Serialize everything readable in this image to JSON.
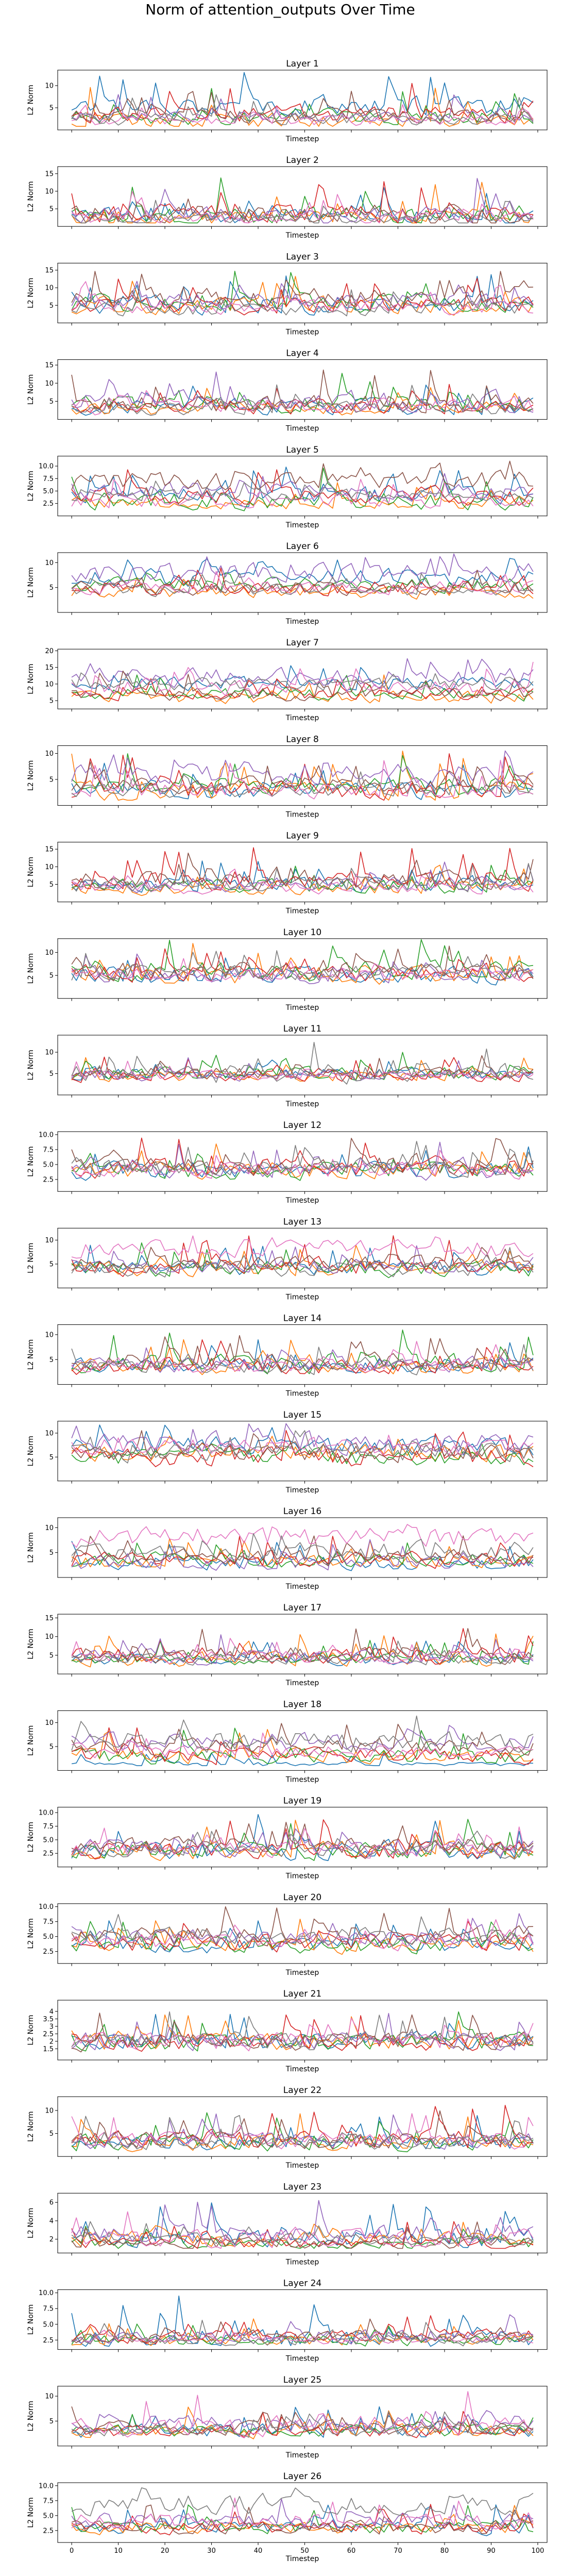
{
  "figure": {
    "title": "Norm of attention_outputs Over Time"
  },
  "palette": [
    "#1f77b4",
    "#ff7f0e",
    "#2ca02c",
    "#d62728",
    "#9467bd",
    "#8c564b",
    "#e377c2",
    "#7f7f7f"
  ],
  "chart_data": {
    "type": "line",
    "x_range": [
      0,
      99
    ],
    "xlim": [
      -3,
      102
    ],
    "x_ticks": [
      0,
      10,
      20,
      30,
      40,
      50,
      60,
      70,
      80,
      90,
      100
    ],
    "xlabel": "Timestep",
    "ylabel": "L2 Norm",
    "series_per_panel": 8,
    "panels": [
      {
        "title": "Layer 1",
        "ylim": [
          0,
          13.5
        ],
        "yticks": [
          5,
          10
        ],
        "lows": [
          1.5,
          0.8,
          1.2,
          1.0,
          1.5,
          0.8,
          1.0,
          0.9
        ],
        "highs": [
          13.0,
          10.0,
          11.0,
          11.0,
          8.0,
          9.0,
          7.0,
          8.0
        ],
        "levels": [
          5.5,
          2.0,
          3.0,
          3.5,
          3.0,
          3.0,
          2.0,
          2.5
        ]
      },
      {
        "title": "Layer 2",
        "ylim": [
          0,
          17
        ],
        "yticks": [
          5,
          10,
          15
        ],
        "lows": [
          1.0,
          1.0,
          1.0,
          1.0,
          1.0,
          1.0,
          1.0,
          1.0
        ],
        "highs": [
          12.0,
          13.0,
          16.0,
          15.0,
          14.0,
          16.0,
          10.0,
          8.0
        ],
        "levels": [
          3.0,
          2.5,
          3.0,
          3.5,
          3.0,
          3.0,
          2.5,
          2.0
        ]
      },
      {
        "title": "Layer 3",
        "ylim": [
          0,
          17
        ],
        "yticks": [
          5,
          10,
          15
        ],
        "lows": [
          2.0,
          2.0,
          2.0,
          2.0,
          2.0,
          2.0,
          2.0,
          2.0
        ],
        "highs": [
          15.0,
          14.0,
          15.0,
          14.0,
          13.0,
          16.0,
          12.0,
          12.0
        ],
        "levels": [
          5.0,
          5.0,
          5.5,
          5.0,
          6.0,
          7.0,
          4.5,
          4.0
        ]
      },
      {
        "title": "Layer 4",
        "ylim": [
          0,
          16.5
        ],
        "yticks": [
          5,
          10,
          15
        ],
        "lows": [
          1.0,
          1.0,
          1.0,
          1.0,
          1.0,
          1.0,
          1.0,
          1.0
        ],
        "highs": [
          12.0,
          10.0,
          13.0,
          11.0,
          16.0,
          14.0,
          12.0,
          10.0
        ],
        "levels": [
          3.5,
          3.0,
          4.0,
          3.5,
          5.0,
          4.5,
          3.5,
          3.0
        ]
      },
      {
        "title": "Layer 5",
        "ylim": [
          0,
          12
        ],
        "yticks": [
          2.5,
          5.0,
          7.5,
          10.0
        ],
        "lows": [
          1.0,
          1.0,
          1.0,
          1.0,
          1.0,
          1.0,
          1.0,
          1.0
        ],
        "highs": [
          10.0,
          7.0,
          10.0,
          10.0,
          10.0,
          11.0,
          8.0,
          7.0
        ],
        "levels": [
          4.0,
          2.5,
          3.0,
          4.0,
          5.0,
          7.0,
          3.0,
          4.0
        ]
      },
      {
        "title": "Layer 6",
        "ylim": [
          0,
          12
        ],
        "yticks": [
          5,
          10
        ],
        "lows": [
          2.0,
          2.0,
          2.0,
          2.0,
          2.0,
          2.0,
          2.0,
          2.0
        ],
        "highs": [
          11.0,
          8.0,
          9.0,
          10.0,
          12.0,
          9.0,
          9.0,
          8.0
        ],
        "levels": [
          7.0,
          4.0,
          5.5,
          5.0,
          8.0,
          5.0,
          5.0,
          4.5
        ]
      },
      {
        "title": "Layer 7",
        "ylim": [
          2.5,
          20.5
        ],
        "yticks": [
          5,
          10,
          15,
          20
        ],
        "lows": [
          5.0,
          3.5,
          4.0,
          4.0,
          5.0,
          4.0,
          5.0,
          5.0
        ],
        "highs": [
          16.0,
          13.0,
          14.0,
          13.0,
          19.0,
          14.0,
          18.0,
          15.0
        ],
        "levels": [
          10.0,
          6.0,
          7.0,
          7.0,
          12.0,
          7.0,
          9.0,
          10.0
        ]
      },
      {
        "title": "Layer 8",
        "ylim": [
          0,
          11.5
        ],
        "yticks": [
          5,
          10
        ],
        "lows": [
          1.0,
          1.0,
          1.0,
          1.0,
          1.0,
          1.0,
          1.0,
          1.0
        ],
        "highs": [
          10.0,
          11.0,
          10.0,
          10.0,
          11.0,
          10.0,
          9.0,
          8.0
        ],
        "levels": [
          3.0,
          2.5,
          3.5,
          3.0,
          6.0,
          4.0,
          3.0,
          3.0
        ]
      },
      {
        "title": "Layer 9",
        "ylim": [
          0,
          17
        ],
        "yticks": [
          5,
          10,
          15
        ],
        "lows": [
          1.5,
          1.5,
          1.5,
          1.5,
          1.5,
          1.5,
          1.5,
          1.5
        ],
        "highs": [
          12.0,
          11.0,
          12.0,
          16.0,
          12.0,
          14.0,
          10.0,
          11.0
        ],
        "levels": [
          5.0,
          4.0,
          4.5,
          6.0,
          5.0,
          6.0,
          4.0,
          4.5
        ]
      },
      {
        "title": "Layer 10",
        "ylim": [
          0,
          13
        ],
        "yticks": [
          5,
          10
        ],
        "lows": [
          2.0,
          2.0,
          2.0,
          2.0,
          2.0,
          2.0,
          2.0,
          2.0
        ],
        "highs": [
          11.0,
          12.0,
          13.0,
          11.0,
          10.0,
          12.0,
          9.0,
          11.0
        ],
        "levels": [
          5.0,
          5.0,
          6.0,
          5.5,
          5.0,
          6.0,
          5.0,
          5.5
        ]
      },
      {
        "title": "Layer 11",
        "ylim": [
          0,
          14
        ],
        "yticks": [
          5,
          10
        ],
        "lows": [
          2.0,
          2.0,
          2.0,
          2.0,
          2.0,
          2.0,
          2.0,
          2.0
        ],
        "highs": [
          9.0,
          9.0,
          10.0,
          9.0,
          9.0,
          10.0,
          8.0,
          14.0
        ],
        "levels": [
          5.0,
          4.5,
          5.0,
          4.5,
          4.5,
          5.0,
          4.5,
          5.0
        ]
      },
      {
        "title": "Layer 12",
        "ylim": [
          0.5,
          10.5
        ],
        "yticks": [
          2.5,
          5.0,
          7.5,
          10.0
        ],
        "lows": [
          1.5,
          1.5,
          1.5,
          1.5,
          1.5,
          1.5,
          1.5,
          1.5
        ],
        "highs": [
          9.0,
          9.0,
          9.0,
          10.0,
          9.0,
          10.0,
          8.0,
          9.0
        ],
        "levels": [
          4.0,
          4.0,
          4.0,
          4.5,
          4.0,
          5.0,
          4.0,
          4.5
        ]
      },
      {
        "title": "Layer 13",
        "ylim": [
          0,
          12.5
        ],
        "yticks": [
          5,
          10
        ],
        "lows": [
          1.5,
          1.5,
          1.5,
          1.5,
          1.5,
          1.5,
          1.5,
          1.5
        ],
        "highs": [
          9.0,
          9.0,
          10.0,
          11.0,
          9.0,
          10.0,
          12.0,
          9.0
        ],
        "levels": [
          4.0,
          4.0,
          4.0,
          4.5,
          4.5,
          5.0,
          8.0,
          4.0
        ]
      },
      {
        "title": "Layer 14",
        "ylim": [
          0,
          12
        ],
        "yticks": [
          5,
          10
        ],
        "lows": [
          1.0,
          1.0,
          1.0,
          1.0,
          1.0,
          1.0,
          1.0,
          1.0
        ],
        "highs": [
          9.0,
          9.0,
          11.0,
          9.0,
          9.0,
          10.0,
          9.0,
          8.0
        ],
        "levels": [
          4.0,
          3.5,
          4.0,
          3.5,
          4.0,
          4.5,
          4.0,
          3.5
        ]
      },
      {
        "title": "Layer 15",
        "ylim": [
          0,
          12.5
        ],
        "yticks": [
          5,
          10
        ],
        "lows": [
          1.0,
          1.0,
          1.0,
          1.0,
          1.0,
          1.0,
          1.0,
          1.0
        ],
        "highs": [
          12.0,
          10.0,
          10.0,
          11.0,
          12.0,
          11.0,
          10.0,
          11.0
        ],
        "levels": [
          7.0,
          6.0,
          5.0,
          5.0,
          8.0,
          6.0,
          7.0,
          6.0
        ]
      },
      {
        "title": "Layer 16",
        "ylim": [
          0,
          12
        ],
        "yticks": [
          5,
          10
        ],
        "lows": [
          1.0,
          1.0,
          1.0,
          1.0,
          1.0,
          1.0,
          1.0,
          1.0
        ],
        "highs": [
          8.0,
          8.0,
          9.0,
          9.0,
          8.0,
          9.0,
          11.0,
          9.0
        ],
        "levels": [
          3.0,
          3.0,
          3.5,
          3.5,
          3.0,
          4.0,
          8.0,
          5.0
        ]
      },
      {
        "title": "Layer 17",
        "ylim": [
          0,
          16
        ],
        "yticks": [
          5,
          10,
          15
        ],
        "lows": [
          1.5,
          1.5,
          1.5,
          1.5,
          1.5,
          1.5,
          1.5,
          1.5
        ],
        "highs": [
          10.0,
          11.0,
          9.0,
          13.0,
          11.0,
          13.0,
          10.0,
          9.0
        ],
        "levels": [
          4.0,
          4.0,
          4.0,
          5.0,
          4.5,
          5.0,
          4.5,
          4.0
        ]
      },
      {
        "title": "Layer 18",
        "ylim": [
          0,
          12.5
        ],
        "yticks": [
          5,
          10
        ],
        "lows": [
          1.0,
          1.0,
          1.0,
          1.0,
          1.0,
          1.0,
          1.0,
          1.0
        ],
        "highs": [
          4.0,
          9.0,
          9.0,
          9.0,
          10.0,
          10.0,
          9.0,
          12.0
        ],
        "levels": [
          1.2,
          3.0,
          3.0,
          3.0,
          6.0,
          5.0,
          4.0,
          6.0
        ]
      },
      {
        "title": "Layer 19",
        "ylim": [
          0,
          11
        ],
        "yticks": [
          2.5,
          5.0,
          7.5,
          10.0
        ],
        "lows": [
          1.0,
          1.0,
          1.0,
          1.0,
          1.0,
          1.0,
          1.0,
          1.0
        ],
        "highs": [
          10.0,
          9.0,
          9.0,
          9.0,
          9.0,
          9.0,
          8.0,
          8.0
        ],
        "levels": [
          3.0,
          3.0,
          3.0,
          3.0,
          3.5,
          4.0,
          3.0,
          3.0
        ]
      },
      {
        "title": "Layer 20",
        "ylim": [
          0.5,
          10.5
        ],
        "yticks": [
          2.5,
          5.0,
          7.5,
          10.0
        ],
        "lows": [
          1.5,
          1.5,
          1.5,
          1.5,
          1.5,
          1.5,
          1.5,
          1.5
        ],
        "highs": [
          8.0,
          8.0,
          8.0,
          9.0,
          9.0,
          10.0,
          8.0,
          9.0
        ],
        "levels": [
          3.5,
          3.5,
          3.5,
          4.0,
          4.5,
          5.0,
          4.0,
          5.0
        ]
      },
      {
        "title": "Layer 21",
        "ylim": [
          0.5,
          8.5
        ],
        "yticks": [
          1.5,
          2.0,
          2.5,
          3.0,
          3.5,
          4.0
        ],
        "tick_labels_mode": "l21",
        "lows": [
          1.0,
          1.0,
          1.0,
          1.0,
          1.0,
          1.0,
          1.0,
          1.0
        ],
        "highs": [
          7.0,
          7.0,
          7.0,
          7.0,
          7.0,
          7.0,
          7.0,
          7.0
        ],
        "levels": [
          3.0,
          3.0,
          3.0,
          3.0,
          3.0,
          3.0,
          3.0,
          3.0
        ]
      },
      {
        "title": "Layer 22",
        "ylim": [
          0,
          13
        ],
        "yticks": [
          5,
          10
        ],
        "lows": [
          1.0,
          1.0,
          1.0,
          1.0,
          1.0,
          1.0,
          1.0,
          1.0
        ],
        "highs": [
          9.0,
          10.0,
          10.0,
          12.0,
          10.0,
          10.0,
          10.0,
          9.0
        ],
        "levels": [
          3.0,
          3.0,
          3.0,
          3.5,
          3.5,
          3.5,
          3.5,
          3.0
        ]
      },
      {
        "title": "Layer 23",
        "ylim": [
          0.5,
          7
        ],
        "yticks": [
          2,
          4,
          6
        ],
        "lows": [
          1.0,
          1.0,
          1.0,
          1.0,
          1.0,
          1.0,
          1.0,
          1.0
        ],
        "highs": [
          6.0,
          5.5,
          4.0,
          4.0,
          6.5,
          4.0,
          6.0,
          4.0
        ],
        "levels": [
          2.0,
          2.0,
          1.5,
          1.5,
          2.5,
          1.5,
          2.0,
          2.0
        ]
      },
      {
        "title": "Layer 24",
        "ylim": [
          1,
          10.5
        ],
        "yticks": [
          2.5,
          5.0,
          7.5,
          10.0
        ],
        "lows": [
          1.5,
          1.5,
          1.5,
          1.5,
          1.5,
          1.5,
          1.5,
          1.5
        ],
        "highs": [
          10.0,
          6.0,
          6.0,
          7.0,
          7.0,
          6.0,
          5.0,
          6.0
        ],
        "levels": [
          3.0,
          2.5,
          2.5,
          3.0,
          3.0,
          3.0,
          2.5,
          2.5
        ]
      },
      {
        "title": "Layer 25",
        "ylim": [
          0,
          12
        ],
        "yticks": [
          5,
          10
        ],
        "lows": [
          1.0,
          1.0,
          1.0,
          1.0,
          1.0,
          1.0,
          1.0,
          1.0
        ],
        "highs": [
          8.0,
          8.0,
          7.0,
          7.0,
          10.0,
          8.0,
          11.0,
          7.0
        ],
        "levels": [
          3.0,
          3.0,
          3.0,
          3.0,
          4.5,
          3.5,
          4.0,
          3.0
        ]
      },
      {
        "title": "Layer 26",
        "ylim": [
          0.5,
          10.5
        ],
        "yticks": [
          2.5,
          5.0,
          7.5,
          10.0
        ],
        "lows": [
          1.5,
          1.5,
          1.5,
          1.5,
          1.5,
          1.5,
          1.5,
          1.5
        ],
        "highs": [
          7.0,
          7.0,
          7.0,
          7.0,
          8.0,
          7.0,
          8.0,
          10.0
        ],
        "levels": [
          3.0,
          3.0,
          3.0,
          3.0,
          4.0,
          3.0,
          4.0,
          7.0
        ]
      }
    ]
  }
}
